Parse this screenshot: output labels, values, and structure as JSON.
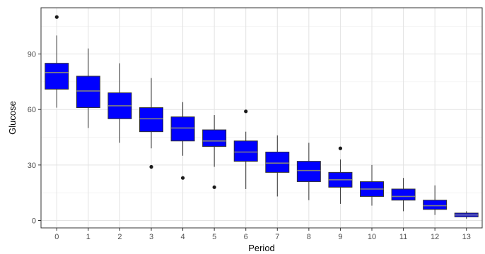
{
  "chart_data": {
    "type": "boxplot",
    "xlabel": "Period",
    "ylabel": "Glucose",
    "categories": [
      "0",
      "1",
      "2",
      "3",
      "4",
      "5",
      "6",
      "7",
      "8",
      "9",
      "10",
      "11",
      "12",
      "13"
    ],
    "ylim": [
      -4,
      115
    ],
    "yticks": [
      0,
      30,
      60,
      90
    ],
    "grid": true,
    "box_color": "#0000ff",
    "median_color": "#808080",
    "boxes": [
      {
        "x": "0",
        "whisker_low": 61,
        "q1": 71,
        "median": 80,
        "q3": 85,
        "whisker_high": 100,
        "outliers": [
          110
        ]
      },
      {
        "x": "1",
        "whisker_low": 50,
        "q1": 61,
        "median": 70,
        "q3": 78,
        "whisker_high": 93,
        "outliers": []
      },
      {
        "x": "2",
        "whisker_low": 42,
        "q1": 55,
        "median": 62,
        "q3": 69,
        "whisker_high": 85,
        "outliers": []
      },
      {
        "x": "3",
        "whisker_low": 39,
        "q1": 48,
        "median": 55,
        "q3": 61,
        "whisker_high": 77,
        "outliers": [
          29
        ]
      },
      {
        "x": "4",
        "whisker_low": 35,
        "q1": 43,
        "median": 50,
        "q3": 56,
        "whisker_high": 64,
        "outliers": [
          23
        ]
      },
      {
        "x": "5",
        "whisker_low": 29,
        "q1": 40,
        "median": 43,
        "q3": 49,
        "whisker_high": 57,
        "outliers": [
          18
        ]
      },
      {
        "x": "6",
        "whisker_low": 17,
        "q1": 32,
        "median": 37,
        "q3": 43,
        "whisker_high": 48,
        "outliers": [
          59
        ]
      },
      {
        "x": "7",
        "whisker_low": 13,
        "q1": 26,
        "median": 31,
        "q3": 37,
        "whisker_high": 46,
        "outliers": []
      },
      {
        "x": "8",
        "whisker_low": 11,
        "q1": 21,
        "median": 27,
        "q3": 32,
        "whisker_high": 42,
        "outliers": []
      },
      {
        "x": "9",
        "whisker_low": 9,
        "q1": 18,
        "median": 22,
        "q3": 26,
        "whisker_high": 33,
        "outliers": [
          39
        ]
      },
      {
        "x": "10",
        "whisker_low": 8,
        "q1": 13,
        "median": 17,
        "q3": 21,
        "whisker_high": 30,
        "outliers": []
      },
      {
        "x": "11",
        "whisker_low": 5,
        "q1": 11,
        "median": 13,
        "q3": 17,
        "whisker_high": 23,
        "outliers": []
      },
      {
        "x": "12",
        "whisker_low": 3,
        "q1": 6,
        "median": 8,
        "q3": 11,
        "whisker_high": 19,
        "outliers": []
      },
      {
        "x": "13",
        "whisker_low": 1,
        "q1": 2,
        "median": 3,
        "q3": 4,
        "whisker_high": 5,
        "outliers": []
      }
    ]
  }
}
